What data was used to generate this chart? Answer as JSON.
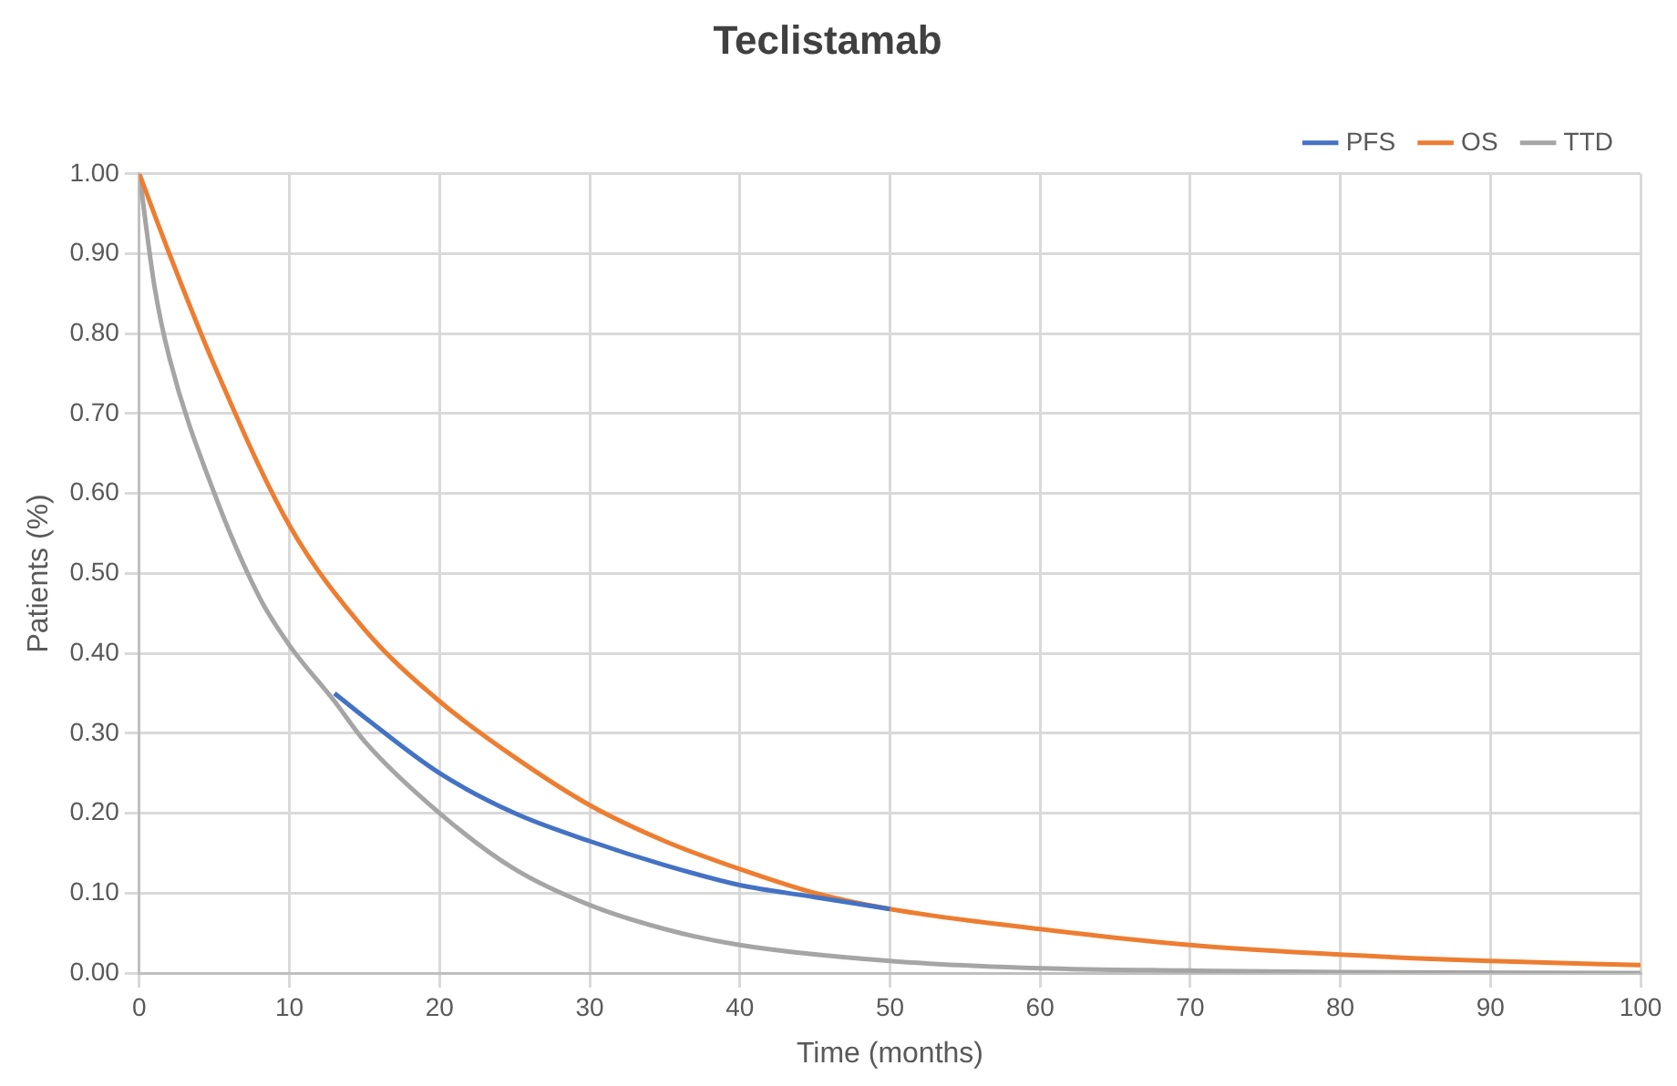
{
  "chart_data": {
    "type": "line",
    "title": "Teclistamab",
    "xlabel": "Time (months)",
    "ylabel": "Patients (%)",
    "xlim": [
      0,
      100
    ],
    "xticks": [
      0,
      10,
      20,
      30,
      40,
      50,
      60,
      70,
      80,
      90,
      100
    ],
    "ylim": [
      0,
      1
    ],
    "yticks": [
      {
        "value": 0,
        "label": "0.00"
      },
      {
        "value": 0.1,
        "label": "0.10"
      },
      {
        "value": 0.2,
        "label": "0.20"
      },
      {
        "value": 0.3,
        "label": "0.30"
      },
      {
        "value": 0.4,
        "label": "0.40"
      },
      {
        "value": 0.5,
        "label": "0.50"
      },
      {
        "value": 0.6,
        "label": "0.60"
      },
      {
        "value": 0.7,
        "label": "0.70"
      },
      {
        "value": 0.8,
        "label": "0.80"
      },
      {
        "value": 0.9,
        "label": "0.90"
      },
      {
        "value": 1,
        "label": "1.00"
      }
    ],
    "grid": true,
    "legend": "top right",
    "marker": "none",
    "line_style": "solid",
    "series": [
      {
        "name": "PFS",
        "color": "#4472c4",
        "x": [
          13,
          15,
          20,
          25,
          30,
          35,
          40,
          45,
          50
        ],
        "values": [
          0.35,
          0.32,
          0.25,
          0.2,
          0.165,
          0.135,
          0.11,
          0.095,
          0.08
        ]
      },
      {
        "name": "OS",
        "color": "#ed7d31",
        "x": [
          0,
          2,
          5,
          10,
          15,
          20,
          25,
          30,
          35,
          40,
          45,
          50,
          60,
          70,
          80,
          90,
          100
        ],
        "values": [
          1,
          0.9,
          0.76,
          0.56,
          0.43,
          0.34,
          0.27,
          0.21,
          0.165,
          0.13,
          0.1,
          0.08,
          0.055,
          0.035,
          0.023,
          0.015,
          0.01
        ]
      },
      {
        "name": "TTD",
        "color": "#a5a5a5",
        "x": [
          0,
          1,
          2,
          5,
          8,
          10,
          13,
          15,
          20,
          25,
          30,
          35,
          40,
          50,
          60,
          70,
          80,
          100
        ],
        "values": [
          1,
          0.86,
          0.77,
          0.6,
          0.47,
          0.41,
          0.34,
          0.29,
          0.2,
          0.13,
          0.085,
          0.055,
          0.035,
          0.015,
          0.006,
          0.003,
          0.001,
          0
        ]
      }
    ]
  }
}
